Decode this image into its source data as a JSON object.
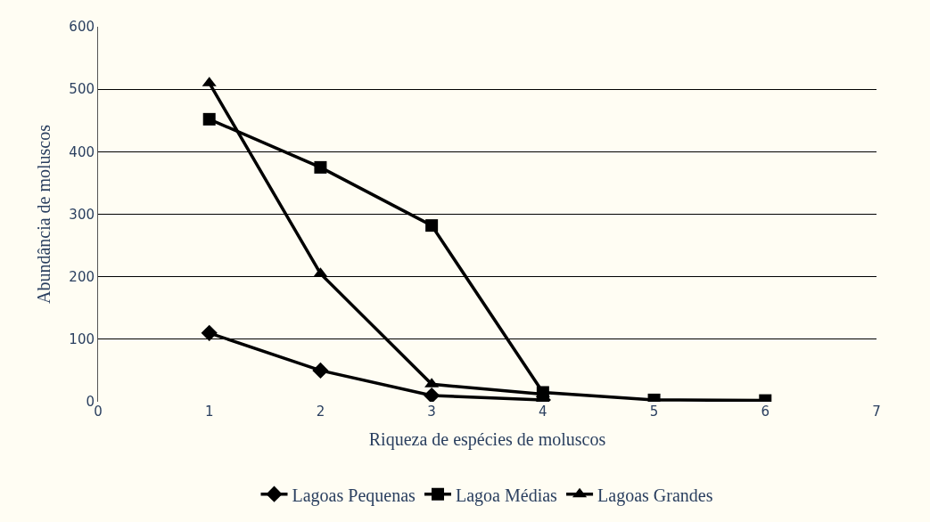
{
  "chart_data": {
    "type": "line",
    "xlabel": "Riqueza de espécies de moluscos",
    "ylabel": "Abundância de moluscos",
    "xlim": [
      0,
      7
    ],
    "xticks": [
      0,
      1,
      2,
      3,
      4,
      5,
      6,
      7
    ],
    "ylim": [
      0,
      600
    ],
    "yticks": [
      0,
      100,
      200,
      300,
      400,
      500,
      600
    ],
    "grid": "y",
    "legend": "bottom",
    "series": [
      {
        "name": "Lagoas Pequenas",
        "color": "#000000",
        "marker": "diamond",
        "x": [
          1,
          2,
          3,
          4
        ],
        "values": [
          110,
          50,
          10,
          3
        ]
      },
      {
        "name": "Lagoa Médias",
        "color": "#000000",
        "marker": "square",
        "x": [
          1,
          2,
          3,
          4,
          5,
          6
        ],
        "values": [
          452,
          375,
          282,
          15,
          3,
          2
        ]
      },
      {
        "name": "Lagoas Grandes",
        "color": "#000000",
        "marker": "triangle",
        "x": [
          1,
          2,
          3,
          4
        ],
        "values": [
          510,
          205,
          28,
          12
        ]
      }
    ]
  }
}
